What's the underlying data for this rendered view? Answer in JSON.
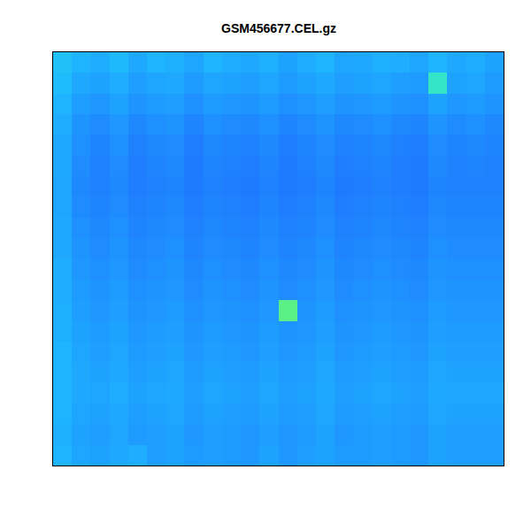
{
  "chart_data": {
    "type": "heatmap",
    "title": "GSM456677.CEL.gz",
    "tick_labels": false,
    "grid": false,
    "zlim": [
      0,
      1
    ],
    "colors": [
      "#000080",
      "#0a2ad8",
      "#1e78ff",
      "#1eb4ff",
      "#20e0e8",
      "#60f080",
      "#d0f040"
    ],
    "cells": [
      [
        0.55,
        0.5,
        0.48,
        0.52,
        0.47,
        0.5,
        0.49,
        0.46,
        0.5,
        0.48,
        0.47,
        0.49,
        0.45,
        0.48,
        0.5,
        0.46,
        0.47,
        0.49,
        0.48,
        0.46,
        0.5,
        0.47,
        0.48,
        0.45
      ],
      [
        0.53,
        0.47,
        0.45,
        0.48,
        0.44,
        0.46,
        0.47,
        0.43,
        0.46,
        0.45,
        0.44,
        0.46,
        0.43,
        0.45,
        0.47,
        0.44,
        0.45,
        0.46,
        0.44,
        0.43,
        0.72,
        0.45,
        0.46,
        0.43
      ],
      [
        0.5,
        0.44,
        0.42,
        0.45,
        0.41,
        0.43,
        0.44,
        0.4,
        0.43,
        0.42,
        0.41,
        0.43,
        0.4,
        0.42,
        0.44,
        0.41,
        0.42,
        0.43,
        0.41,
        0.4,
        0.45,
        0.42,
        0.43,
        0.41
      ],
      [
        0.48,
        0.41,
        0.39,
        0.42,
        0.38,
        0.4,
        0.41,
        0.37,
        0.4,
        0.39,
        0.38,
        0.4,
        0.37,
        0.39,
        0.41,
        0.38,
        0.39,
        0.4,
        0.38,
        0.37,
        0.41,
        0.39,
        0.4,
        0.38
      ],
      [
        0.47,
        0.4,
        0.37,
        0.4,
        0.36,
        0.38,
        0.39,
        0.35,
        0.38,
        0.37,
        0.36,
        0.38,
        0.35,
        0.37,
        0.39,
        0.36,
        0.37,
        0.38,
        0.36,
        0.35,
        0.39,
        0.37,
        0.38,
        0.37
      ],
      [
        0.47,
        0.39,
        0.36,
        0.39,
        0.35,
        0.37,
        0.38,
        0.34,
        0.37,
        0.36,
        0.35,
        0.37,
        0.34,
        0.36,
        0.38,
        0.35,
        0.36,
        0.37,
        0.35,
        0.34,
        0.38,
        0.36,
        0.37,
        0.36
      ],
      [
        0.46,
        0.38,
        0.36,
        0.38,
        0.35,
        0.36,
        0.37,
        0.34,
        0.36,
        0.35,
        0.34,
        0.36,
        0.34,
        0.35,
        0.37,
        0.34,
        0.35,
        0.36,
        0.35,
        0.34,
        0.37,
        0.36,
        0.36,
        0.36
      ],
      [
        0.46,
        0.39,
        0.37,
        0.39,
        0.36,
        0.37,
        0.38,
        0.35,
        0.37,
        0.36,
        0.35,
        0.37,
        0.35,
        0.36,
        0.38,
        0.35,
        0.36,
        0.37,
        0.36,
        0.35,
        0.38,
        0.37,
        0.37,
        0.37
      ],
      [
        0.47,
        0.4,
        0.38,
        0.4,
        0.37,
        0.38,
        0.39,
        0.36,
        0.38,
        0.37,
        0.36,
        0.38,
        0.36,
        0.37,
        0.39,
        0.36,
        0.37,
        0.38,
        0.37,
        0.36,
        0.39,
        0.38,
        0.38,
        0.38
      ],
      [
        0.47,
        0.41,
        0.39,
        0.41,
        0.38,
        0.39,
        0.4,
        0.37,
        0.39,
        0.38,
        0.37,
        0.39,
        0.37,
        0.38,
        0.4,
        0.37,
        0.38,
        0.39,
        0.38,
        0.37,
        0.4,
        0.39,
        0.39,
        0.39
      ],
      [
        0.48,
        0.42,
        0.4,
        0.42,
        0.39,
        0.4,
        0.41,
        0.38,
        0.4,
        0.39,
        0.38,
        0.4,
        0.38,
        0.39,
        0.41,
        0.38,
        0.39,
        0.4,
        0.39,
        0.38,
        0.41,
        0.4,
        0.4,
        0.4
      ],
      [
        0.48,
        0.43,
        0.41,
        0.43,
        0.4,
        0.41,
        0.42,
        0.39,
        0.41,
        0.4,
        0.39,
        0.41,
        0.39,
        0.4,
        0.42,
        0.39,
        0.4,
        0.41,
        0.4,
        0.39,
        0.42,
        0.41,
        0.41,
        0.41
      ],
      [
        0.49,
        0.44,
        0.42,
        0.44,
        0.41,
        0.42,
        0.43,
        0.4,
        0.42,
        0.41,
        0.4,
        0.42,
        0.82,
        0.41,
        0.43,
        0.4,
        0.41,
        0.42,
        0.41,
        0.4,
        0.43,
        0.42,
        0.42,
        0.42
      ],
      [
        0.49,
        0.45,
        0.43,
        0.45,
        0.42,
        0.43,
        0.44,
        0.41,
        0.43,
        0.42,
        0.41,
        0.43,
        0.41,
        0.42,
        0.44,
        0.41,
        0.42,
        0.43,
        0.42,
        0.41,
        0.44,
        0.43,
        0.43,
        0.43
      ],
      [
        0.5,
        0.46,
        0.44,
        0.46,
        0.43,
        0.44,
        0.45,
        0.42,
        0.44,
        0.43,
        0.42,
        0.44,
        0.42,
        0.43,
        0.45,
        0.42,
        0.43,
        0.44,
        0.43,
        0.42,
        0.45,
        0.44,
        0.44,
        0.44
      ],
      [
        0.5,
        0.47,
        0.45,
        0.47,
        0.44,
        0.45,
        0.46,
        0.43,
        0.45,
        0.44,
        0.43,
        0.45,
        0.43,
        0.44,
        0.46,
        0.43,
        0.44,
        0.45,
        0.44,
        0.43,
        0.46,
        0.45,
        0.45,
        0.45
      ],
      [
        0.5,
        0.47,
        0.46,
        0.48,
        0.45,
        0.46,
        0.47,
        0.44,
        0.46,
        0.45,
        0.44,
        0.46,
        0.44,
        0.45,
        0.47,
        0.44,
        0.45,
        0.46,
        0.45,
        0.44,
        0.47,
        0.46,
        0.46,
        0.46
      ],
      [
        0.5,
        0.46,
        0.45,
        0.47,
        0.44,
        0.45,
        0.46,
        0.43,
        0.45,
        0.44,
        0.43,
        0.45,
        0.43,
        0.44,
        0.46,
        0.43,
        0.44,
        0.45,
        0.44,
        0.43,
        0.46,
        0.45,
        0.45,
        0.45
      ],
      [
        0.49,
        0.45,
        0.44,
        0.46,
        0.43,
        0.44,
        0.45,
        0.42,
        0.44,
        0.43,
        0.42,
        0.44,
        0.42,
        0.43,
        0.45,
        0.42,
        0.43,
        0.44,
        0.43,
        0.42,
        0.45,
        0.44,
        0.44,
        0.44
      ],
      [
        0.5,
        0.46,
        0.45,
        0.47,
        0.48,
        0.44,
        0.45,
        0.43,
        0.44,
        0.43,
        0.42,
        0.45,
        0.42,
        0.44,
        0.45,
        0.43,
        0.43,
        0.44,
        0.43,
        0.42,
        0.45,
        0.44,
        0.44,
        0.44
      ]
    ]
  }
}
